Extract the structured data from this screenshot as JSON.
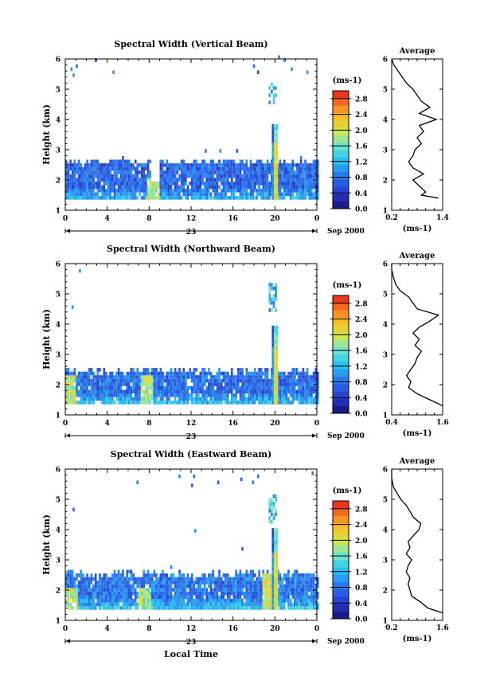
{
  "chart_data": [
    {
      "type": "heatmap",
      "title": "Spectral Width (Vertical Beam)",
      "ylabel": "Height (km)",
      "y_ticks": [
        "1",
        "2",
        "3",
        "4",
        "5",
        "6"
      ],
      "x_ticks": [
        "0",
        "4",
        "8",
        "12",
        "16",
        "20",
        "0"
      ],
      "ylim": [
        1,
        6
      ],
      "xlim_hours": [
        0,
        24
      ],
      "date_day": "23",
      "date_month_year": "Sep 2000",
      "colorbar": {
        "unit": "(ms-1)",
        "ticks": [
          "2.8",
          "2.4",
          "2.0",
          "1.6",
          "1.2",
          "0.8",
          "0.4",
          "0.0"
        ],
        "range": [
          0,
          3.0
        ]
      },
      "layer": {
        "top": 2.55,
        "bottom": 1.35,
        "mean": 0.7,
        "gap": [
          8.2,
          8.8
        ]
      },
      "spike": {
        "x": 20.0,
        "top": 3.8,
        "peak": 2.9
      },
      "upper_patch": {
        "x": 20.0,
        "bottom": 4.5,
        "top": 5.2
      },
      "hot_spots": [
        {
          "x": 8.3,
          "top": 2.0,
          "peak": 2.2
        }
      ],
      "scattered": [
        [
          0.5,
          5.6
        ],
        [
          0.7,
          5.4
        ],
        [
          1.0,
          5.7
        ],
        [
          2.8,
          5.9
        ],
        [
          4.5,
          5.5
        ],
        [
          20.8,
          5.9
        ],
        [
          21.5,
          5.6
        ],
        [
          23.0,
          5.5
        ],
        [
          18.3,
          5.5
        ],
        [
          17.9,
          5.7
        ],
        [
          20.3,
          6.0
        ],
        [
          13.3,
          2.9
        ],
        [
          14.7,
          2.9
        ],
        [
          16.3,
          2.9
        ]
      ],
      "average": {
        "title": "Average",
        "xlabel": "(ms-1)",
        "x_ticks": [
          "0.2",
          "1.4"
        ],
        "xlim": [
          0.2,
          1.4
        ],
        "y_ticks": [
          "1",
          "2",
          "3",
          "4",
          "5",
          "6"
        ],
        "profile": [
          [
            1.3,
            1.4
          ],
          [
            0.9,
            1.5
          ],
          [
            1.0,
            1.6
          ],
          [
            0.85,
            1.8
          ],
          [
            0.7,
            2.0
          ],
          [
            0.95,
            2.2
          ],
          [
            0.7,
            2.4
          ],
          [
            0.6,
            2.6
          ],
          [
            0.7,
            2.8
          ],
          [
            0.75,
            3.0
          ],
          [
            0.9,
            3.2
          ],
          [
            0.8,
            3.4
          ],
          [
            0.95,
            3.6
          ],
          [
            0.85,
            3.8
          ],
          [
            1.25,
            4.0
          ],
          [
            0.85,
            4.2
          ],
          [
            1.1,
            4.4
          ],
          [
            0.9,
            4.6
          ],
          [
            0.8,
            4.8
          ],
          [
            0.7,
            5.0
          ],
          [
            0.55,
            5.2
          ],
          [
            0.45,
            5.4
          ],
          [
            0.35,
            5.6
          ],
          [
            0.25,
            5.8
          ],
          [
            0.2,
            6.0
          ]
        ]
      }
    },
    {
      "type": "heatmap",
      "title": "Spectral Width (Northward Beam)",
      "ylabel": "Height (km)",
      "y_ticks": [
        "1",
        "2",
        "3",
        "4",
        "5",
        "6"
      ],
      "x_ticks": [
        "0",
        "4",
        "8",
        "12",
        "16",
        "20",
        "0"
      ],
      "ylim": [
        1,
        6
      ],
      "xlim_hours": [
        0,
        24
      ],
      "date_day": "23",
      "date_month_year": "Sep 2000",
      "colorbar": {
        "unit": "(ms-1)",
        "ticks": [
          "2.8",
          "2.4",
          "2.0",
          "1.6",
          "1.2",
          "0.8",
          "0.4",
          "0.0"
        ],
        "range": [
          0,
          3.0
        ]
      },
      "layer": {
        "top": 2.4,
        "bottom": 1.35,
        "mean": 0.75,
        "gap": []
      },
      "spike": {
        "x": 20.0,
        "top": 3.9,
        "peak": 2.9
      },
      "upper_patch": {
        "x": 20.0,
        "bottom": 4.4,
        "top": 5.3
      },
      "hot_spots": [
        {
          "x": 0.4,
          "top": 2.3,
          "peak": 2.3
        },
        {
          "x": 7.8,
          "top": 2.2,
          "peak": 2.2
        }
      ],
      "scattered": [
        [
          1.3,
          5.7
        ],
        [
          0.6,
          4.5
        ]
      ],
      "average": {
        "title": "Average",
        "xlabel": "(ms-1)",
        "x_ticks": [
          "0.4",
          "1.6"
        ],
        "xlim": [
          0.4,
          1.6
        ],
        "y_ticks": [
          "1",
          "2",
          "3",
          "4",
          "5",
          "6"
        ],
        "profile": [
          [
            1.6,
            1.3
          ],
          [
            1.3,
            1.5
          ],
          [
            1.0,
            1.7
          ],
          [
            0.8,
            1.9
          ],
          [
            0.85,
            2.1
          ],
          [
            0.75,
            2.3
          ],
          [
            0.85,
            2.5
          ],
          [
            0.95,
            2.7
          ],
          [
            1.0,
            2.9
          ],
          [
            1.1,
            3.1
          ],
          [
            0.95,
            3.3
          ],
          [
            1.05,
            3.5
          ],
          [
            0.9,
            3.7
          ],
          [
            1.05,
            3.9
          ],
          [
            1.3,
            4.1
          ],
          [
            1.5,
            4.3
          ],
          [
            1.0,
            4.5
          ],
          [
            0.9,
            4.7
          ],
          [
            0.8,
            4.9
          ],
          [
            0.6,
            5.1
          ],
          [
            0.5,
            5.3
          ],
          [
            0.45,
            5.5
          ],
          [
            0.4,
            5.8
          ],
          [
            0.4,
            6.0
          ]
        ]
      }
    },
    {
      "type": "heatmap",
      "title": "Spectral Width (Eastward Beam)",
      "ylabel": "Height (km)",
      "xlabel": "Local Time",
      "y_ticks": [
        "1",
        "2",
        "3",
        "4",
        "5",
        "6"
      ],
      "x_ticks": [
        "0",
        "4",
        "8",
        "12",
        "16",
        "20",
        "0"
      ],
      "ylim": [
        1,
        6
      ],
      "xlim_hours": [
        0,
        24
      ],
      "date_day": "23",
      "date_month_year": "Sep 2000",
      "colorbar": {
        "unit": "(ms-1)",
        "ticks": [
          "2.8",
          "2.4",
          "2.0",
          "1.6",
          "1.2",
          "0.8",
          "0.4",
          "0.0"
        ],
        "range": [
          0,
          3.0
        ]
      },
      "layer": {
        "top": 2.5,
        "bottom": 1.35,
        "mean": 0.8,
        "gap": []
      },
      "spike": {
        "x": 20.0,
        "top": 4.0,
        "peak": 2.9
      },
      "upper_patch": {
        "x": 20.0,
        "bottom": 4.2,
        "top": 5.1
      },
      "hot_spots": [
        {
          "x": 0.5,
          "top": 2.0,
          "peak": 2.3
        },
        {
          "x": 7.5,
          "top": 2.0,
          "peak": 2.1
        },
        {
          "x": 19.2,
          "top": 2.5,
          "peak": 2.4
        }
      ],
      "scattered": [
        [
          6.8,
          5.5
        ],
        [
          10.8,
          5.7
        ],
        [
          12.2,
          5.7
        ],
        [
          12.0,
          5.4
        ],
        [
          14.5,
          5.5
        ],
        [
          16.7,
          5.6
        ],
        [
          18.3,
          5.7
        ],
        [
          0.7,
          4.6
        ],
        [
          12.3,
          3.9
        ],
        [
          16.8,
          3.3
        ],
        [
          10.0,
          2.7
        ],
        [
          23.5,
          5.8
        ],
        [
          17.8,
          5.5
        ]
      ],
      "average": {
        "title": "Average",
        "xlabel": "(ms-1)",
        "x_ticks": [
          "0.2",
          "1.6"
        ],
        "xlim": [
          0.2,
          1.6
        ],
        "y_ticks": [
          "1",
          "2",
          "3",
          "4",
          "5",
          "6"
        ],
        "profile": [
          [
            1.6,
            1.25
          ],
          [
            1.2,
            1.4
          ],
          [
            1.0,
            1.6
          ],
          [
            0.75,
            1.8
          ],
          [
            0.7,
            2.0
          ],
          [
            0.65,
            2.2
          ],
          [
            0.7,
            2.4
          ],
          [
            0.6,
            2.6
          ],
          [
            0.65,
            2.8
          ],
          [
            0.75,
            3.0
          ],
          [
            0.6,
            3.2
          ],
          [
            0.7,
            3.4
          ],
          [
            0.65,
            3.6
          ],
          [
            0.8,
            3.8
          ],
          [
            0.95,
            4.0
          ],
          [
            1.0,
            4.2
          ],
          [
            0.8,
            4.4
          ],
          [
            0.7,
            4.6
          ],
          [
            0.6,
            4.8
          ],
          [
            0.45,
            5.0
          ],
          [
            0.35,
            5.2
          ],
          [
            0.25,
            5.4
          ],
          [
            0.2,
            5.7
          ],
          [
            0.2,
            6.0
          ]
        ]
      }
    }
  ]
}
